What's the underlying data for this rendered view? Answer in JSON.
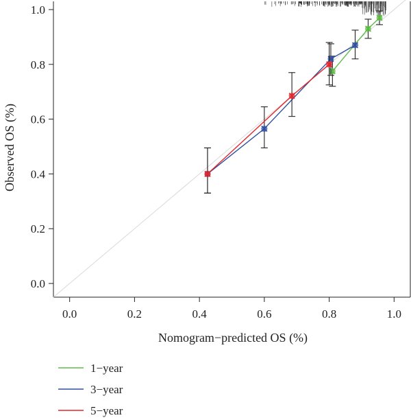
{
  "chart_data": {
    "type": "scatter",
    "title": "",
    "xlabel": "Nomogram−predicted OS (%)",
    "ylabel": "Observed OS (%)",
    "xlim": [
      -0.05,
      1.05
    ],
    "ylim": [
      -0.05,
      1.03
    ],
    "x_ticks": [
      0.0,
      0.2,
      0.4,
      0.6,
      0.8,
      1.0
    ],
    "x_tick_labels": [
      "0.0",
      "0.2",
      "0.4",
      "0.6",
      "0.8",
      "1.0"
    ],
    "y_ticks": [
      0.0,
      0.2,
      0.4,
      0.6,
      0.8,
      1.0
    ],
    "y_tick_labels": [
      "0.0",
      "0.2",
      "0.4",
      "0.6",
      "0.8",
      "1.0"
    ],
    "grid": false,
    "legend_position": "bottom-left",
    "reference_line": {
      "from": [
        -0.05,
        -0.05
      ],
      "to": [
        1.05,
        1.05
      ],
      "color": "#d9d9d9"
    },
    "series": [
      {
        "name": "1−year",
        "color": "#5dbb46",
        "points": [
          {
            "x": 0.81,
            "y": 0.775,
            "lo": 0.72,
            "hi": 0.83
          },
          {
            "x": 0.92,
            "y": 0.93,
            "lo": 0.895,
            "hi": 0.965
          },
          {
            "x": 0.955,
            "y": 0.97,
            "lo": 0.945,
            "hi": 0.995
          }
        ]
      },
      {
        "name": "3−year",
        "color": "#2f4f9f",
        "points": [
          {
            "x": 0.425,
            "y": 0.4,
            "lo": 0.33,
            "hi": 0.495
          },
          {
            "x": 0.6,
            "y": 0.565,
            "lo": 0.495,
            "hi": 0.645
          },
          {
            "x": 0.805,
            "y": 0.82,
            "lo": 0.76,
            "hi": 0.875
          },
          {
            "x": 0.88,
            "y": 0.87,
            "lo": 0.82,
            "hi": 0.925
          }
        ]
      },
      {
        "name": "5−year",
        "color": "#e3262c",
        "points": [
          {
            "x": 0.425,
            "y": 0.4,
            "lo": 0.33,
            "hi": 0.495
          },
          {
            "x": 0.685,
            "y": 0.685,
            "lo": 0.61,
            "hi": 0.77
          },
          {
            "x": 0.8,
            "y": 0.8,
            "lo": 0.725,
            "hi": 0.88
          }
        ]
      }
    ]
  }
}
